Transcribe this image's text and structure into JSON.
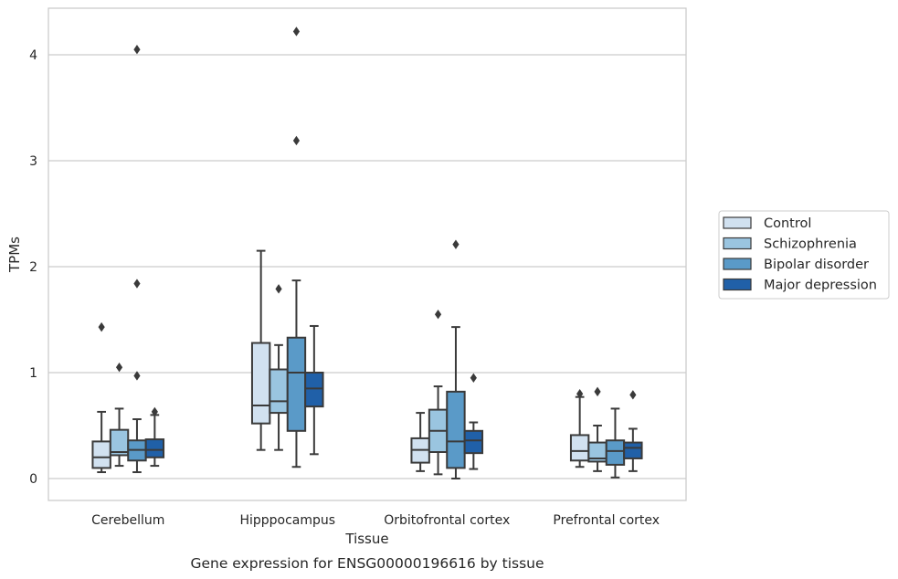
{
  "chart_data": {
    "type": "box",
    "title": "",
    "caption": "Gene expression for ENSG00000196616 by tissue",
    "xlabel": "Tissue",
    "ylabel": "TPMs",
    "ylim": [
      -0.2,
      4.45
    ],
    "yticks": [
      0,
      1,
      2,
      3,
      4
    ],
    "grid": "horizontal",
    "legend_position": "right",
    "categories": [
      "Cerebellum",
      "Hipppocampus",
      "Orbitofrontal cortex",
      "Prefrontal cortex"
    ],
    "series": [
      {
        "name": "Control",
        "color": "#d1e1f0",
        "boxes": [
          {
            "whisker_low": 0.06,
            "q1": 0.1,
            "median": 0.2,
            "q3": 0.35,
            "whisker_high": 0.63,
            "outliers": [
              1.43
            ]
          },
          {
            "whisker_low": 0.27,
            "q1": 0.52,
            "median": 0.69,
            "q3": 1.28,
            "whisker_high": 2.15,
            "outliers": []
          },
          {
            "whisker_low": 0.07,
            "q1": 0.15,
            "median": 0.27,
            "q3": 0.38,
            "whisker_high": 0.62,
            "outliers": []
          },
          {
            "whisker_low": 0.11,
            "q1": 0.17,
            "median": 0.26,
            "q3": 0.41,
            "whisker_high": 0.77,
            "outliers": [
              0.8
            ]
          }
        ]
      },
      {
        "name": "Schizophrenia",
        "color": "#9ac5e0",
        "boxes": [
          {
            "whisker_low": 0.12,
            "q1": 0.22,
            "median": 0.25,
            "q3": 0.46,
            "whisker_high": 0.66,
            "outliers": [
              1.05
            ]
          },
          {
            "whisker_low": 0.27,
            "q1": 0.62,
            "median": 0.73,
            "q3": 1.03,
            "whisker_high": 1.26,
            "outliers": [
              1.79
            ]
          },
          {
            "whisker_low": 0.04,
            "q1": 0.25,
            "median": 0.45,
            "q3": 0.65,
            "whisker_high": 0.87,
            "outliers": [
              1.55
            ]
          },
          {
            "whisker_low": 0.07,
            "q1": 0.16,
            "median": 0.19,
            "q3": 0.34,
            "whisker_high": 0.5,
            "outliers": [
              0.82
            ]
          }
        ]
      },
      {
        "name": "Bipolar disorder",
        "color": "#5a9ac8",
        "boxes": [
          {
            "whisker_low": 0.06,
            "q1": 0.17,
            "median": 0.27,
            "q3": 0.36,
            "whisker_high": 0.56,
            "outliers": [
              0.97,
              1.84,
              4.05
            ]
          },
          {
            "whisker_low": 0.11,
            "q1": 0.45,
            "median": 1.0,
            "q3": 1.33,
            "whisker_high": 1.87,
            "outliers": [
              3.19,
              4.22
            ]
          },
          {
            "whisker_low": 0.0,
            "q1": 0.1,
            "median": 0.35,
            "q3": 0.82,
            "whisker_high": 1.43,
            "outliers": [
              2.21
            ]
          },
          {
            "whisker_low": 0.01,
            "q1": 0.13,
            "median": 0.26,
            "q3": 0.36,
            "whisker_high": 0.66,
            "outliers": []
          }
        ]
      },
      {
        "name": "Major depression",
        "color": "#2060a8",
        "boxes": [
          {
            "whisker_low": 0.12,
            "q1": 0.2,
            "median": 0.27,
            "q3": 0.37,
            "whisker_high": 0.6,
            "outliers": [
              0.63
            ]
          },
          {
            "whisker_low": 0.23,
            "q1": 0.68,
            "median": 0.85,
            "q3": 1.0,
            "whisker_high": 1.44,
            "outliers": []
          },
          {
            "whisker_low": 0.09,
            "q1": 0.24,
            "median": 0.36,
            "q3": 0.45,
            "whisker_high": 0.53,
            "outliers": [
              0.95
            ]
          },
          {
            "whisker_low": 0.07,
            "q1": 0.19,
            "median": 0.29,
            "q3": 0.34,
            "whisker_high": 0.47,
            "outliers": [
              0.79
            ]
          }
        ]
      }
    ]
  }
}
